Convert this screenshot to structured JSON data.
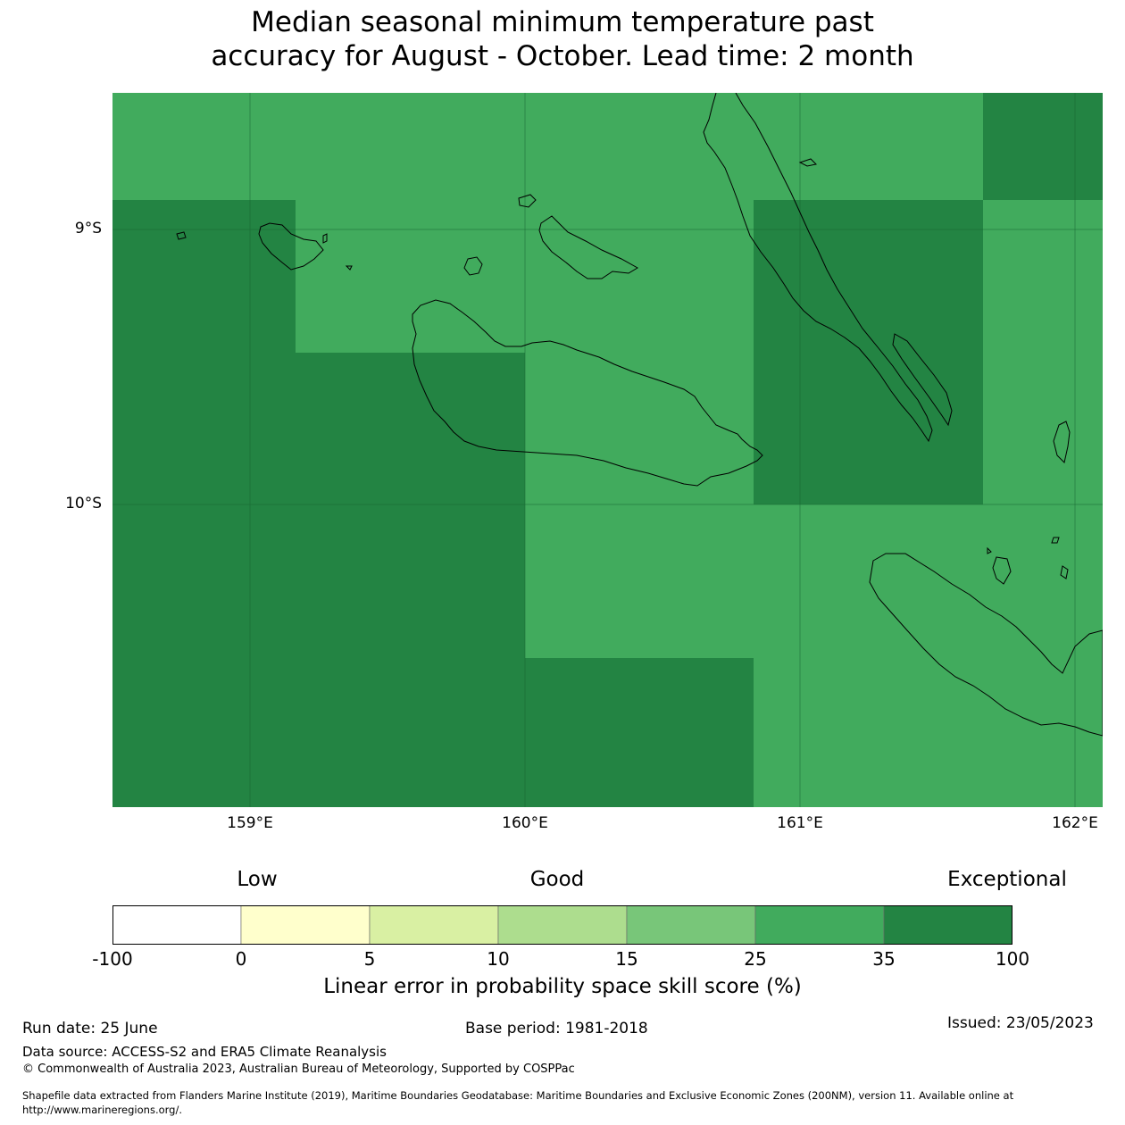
{
  "title": {
    "line1": "Median seasonal minimum temperature past",
    "line2": "accuracy for August - October. Lead time: 2 month"
  },
  "map": {
    "lat_labels": [
      "9°S",
      "10°S"
    ],
    "lon_labels": [
      "159°E",
      "160°E",
      "161°E",
      "162°E"
    ],
    "colors": {
      "good": "#41ab5d",
      "exceptional": "#238443"
    }
  },
  "colorbar": {
    "category_labels": {
      "low": "Low",
      "good": "Good",
      "exceptional": "Exceptional"
    },
    "ticks": [
      "-100",
      "0",
      "5",
      "10",
      "15",
      "25",
      "35",
      "100"
    ],
    "colors": [
      "#ffffff",
      "#ffffcc",
      "#d9f0a3",
      "#addd8e",
      "#78c679",
      "#41ab5d",
      "#238443"
    ],
    "label": "Linear error in probability space skill score (%)"
  },
  "footer": {
    "run_date": "Run date: 25 June",
    "base_period": "Base period: 1981-2018",
    "issued": "Issued: 23/05/2023",
    "data_source": "Data source: ACCESS-S2 and ERA5 Climate Reanalysis",
    "copyright": "© Commonwealth of Australia 2023, Australian Bureau of Meteorology, Supported by COSPPac",
    "shapefile_line1": "Shapefile data extracted from Flanders Marine Institute (2019), Maritime Boundaries Geodatabase: Maritime Boundaries and Exclusive Economic Zones (200NM), version 11. Available online at",
    "shapefile_line2": "http://www.marineregions.org/."
  }
}
